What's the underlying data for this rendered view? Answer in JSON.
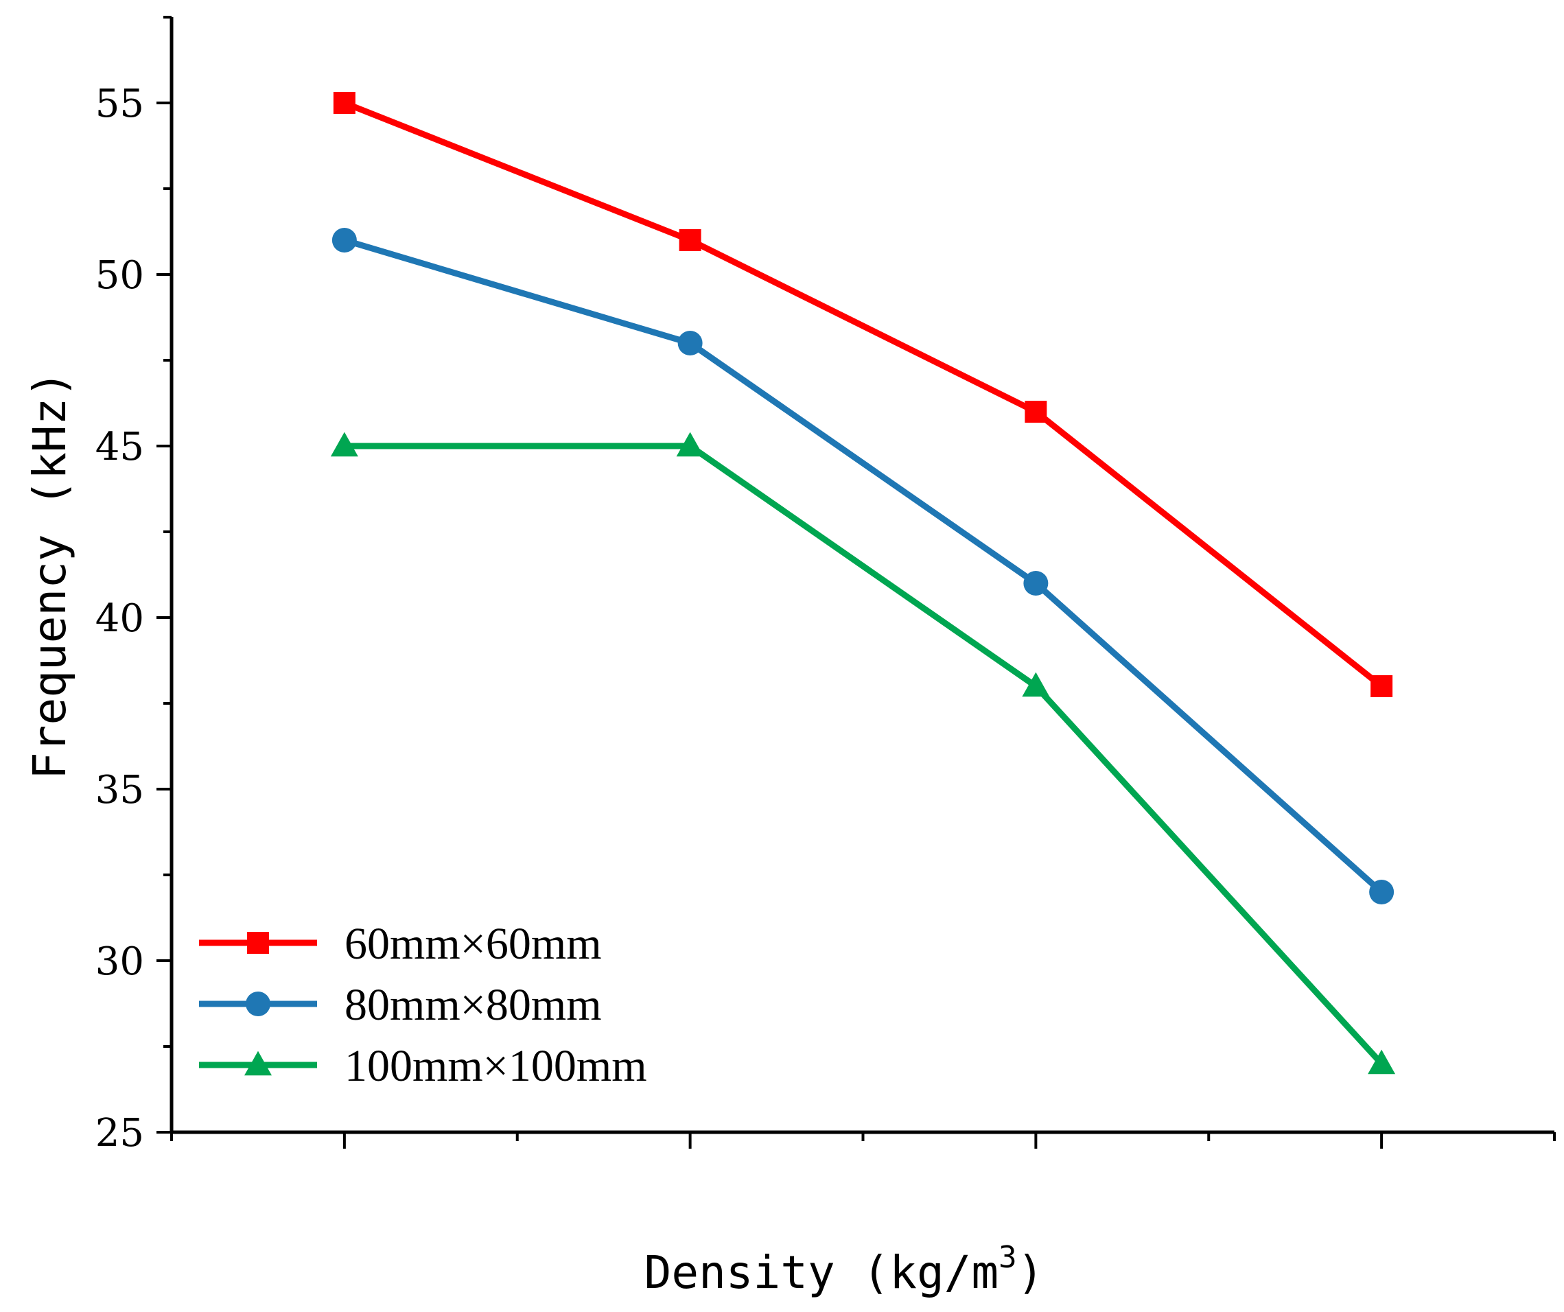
{
  "chart_data": {
    "type": "line",
    "title": "",
    "xlabel": "Density (kg/m",
    "xlabel_superscript": "3",
    "xlabel_close": ")",
    "ylabel": "Frequency (kHz)",
    "ylim": [
      25,
      57.5
    ],
    "yticks": [
      25,
      30,
      35,
      40,
      45,
      50,
      55
    ],
    "x": [
      1,
      2,
      3,
      4
    ],
    "xlim": [
      0.5,
      4.5
    ],
    "grid": false,
    "legend_position": "bottom-left",
    "series": [
      {
        "name": "60mm×60mm",
        "color": "#ff0000",
        "marker": "square",
        "values": [
          55,
          51,
          46,
          38
        ]
      },
      {
        "name": "80mm×80mm",
        "color": "#1f77b4",
        "marker": "circle",
        "values": [
          51,
          48,
          41,
          32
        ]
      },
      {
        "name": "100mm×100mm",
        "color": "#00a651",
        "marker": "triangle",
        "values": [
          45,
          45,
          38,
          27
        ]
      }
    ]
  }
}
